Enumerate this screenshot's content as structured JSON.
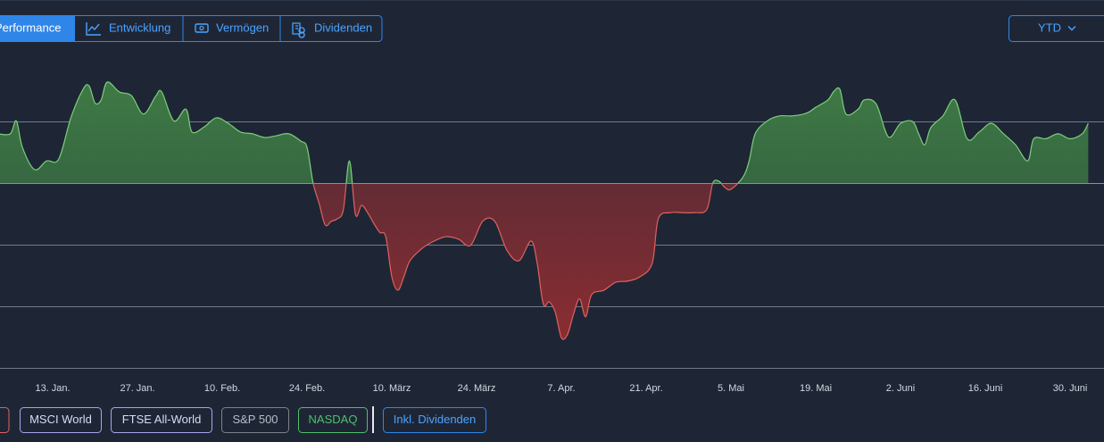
{
  "tabs": [
    "Performance",
    "Entwicklung",
    "Vermögen",
    "Dividenden"
  ],
  "period": "YTD",
  "chart_data": {
    "type": "area",
    "x": [
      4,
      6,
      7,
      8,
      10,
      12,
      14,
      16,
      18,
      19,
      20,
      21,
      22,
      24,
      26,
      28,
      30,
      31,
      33,
      35,
      36,
      38,
      40,
      42,
      44,
      46,
      48,
      50,
      52,
      54,
      55,
      56,
      57,
      58,
      59,
      60,
      61,
      62,
      63,
      64,
      65,
      66,
      67,
      68,
      69,
      70,
      71,
      72,
      74,
      76,
      78,
      80,
      82,
      84,
      86,
      88,
      90,
      92,
      93,
      94,
      95,
      96,
      97,
      98,
      99,
      100,
      101,
      102,
      104,
      106,
      108,
      110,
      112,
      113,
      115,
      117,
      119,
      121,
      122,
      123,
      124,
      125,
      127,
      128,
      129,
      131,
      133,
      135,
      137,
      138,
      139,
      141,
      142,
      143,
      144,
      146,
      147,
      149,
      151,
      153,
      155,
      156,
      157,
      158,
      160,
      162,
      164,
      166,
      168,
      170,
      172,
      174,
      175,
      177,
      179,
      181,
      183,
      184
    ],
    "values": [
      8.0,
      8.0,
      10.1,
      5.8,
      2.2,
      3.6,
      3.9,
      10.6,
      15.2,
      15.8,
      13.0,
      13.5,
      16.4,
      14.8,
      14.2,
      11.2,
      14.1,
      14.8,
      10.1,
      12.0,
      8.3,
      9.1,
      10.6,
      9.7,
      8.3,
      8.0,
      7.4,
      7.7,
      8.0,
      6.8,
      5.8,
      0.0,
      -3.3,
      -6.8,
      -6.2,
      -5.8,
      -4.3,
      3.6,
      -5.1,
      -3.6,
      -4.8,
      -6.5,
      -8.0,
      -8.7,
      -15.2,
      -17.4,
      -15.2,
      -12.6,
      -10.6,
      -9.4,
      -8.7,
      -9.1,
      -10.1,
      -6.2,
      -6.2,
      -10.9,
      -12.6,
      -9.4,
      -13.0,
      -19.6,
      -19.3,
      -21.0,
      -25.1,
      -24.6,
      -21.3,
      -18.8,
      -21.7,
      -18.1,
      -17.4,
      -16.1,
      -15.9,
      -15.2,
      -13.0,
      -5.8,
      -4.8,
      -4.8,
      -4.8,
      -4.3,
      0.0,
      0.3,
      -0.7,
      -1.0,
      1.0,
      3.6,
      8.0,
      10.1,
      10.9,
      10.9,
      11.2,
      11.6,
      12.3,
      13.5,
      14.9,
      15.2,
      11.2,
      12.0,
      13.5,
      12.8,
      7.5,
      9.7,
      10.0,
      8.0,
      6.2,
      9.0,
      10.9,
      13.5,
      7.2,
      8.3,
      9.7,
      8.0,
      6.2,
      3.6,
      7.2,
      7.2,
      8.0,
      7.2,
      8.0,
      9.7
    ],
    "xlim": [
      4.3,
      186.6
    ],
    "xticks": [
      {
        "value": 13,
        "label": "13. Jan."
      },
      {
        "value": 27,
        "label": "27. Jan."
      },
      {
        "value": 41,
        "label": "10. Feb."
      },
      {
        "value": 55,
        "label": "24. Feb."
      },
      {
        "value": 69,
        "label": "10. März"
      },
      {
        "value": 83,
        "label": "24. März"
      },
      {
        "value": 97,
        "label": "7. Apr."
      },
      {
        "value": 111,
        "label": "21. Apr."
      },
      {
        "value": 125,
        "label": "5. Mai"
      },
      {
        "value": 139,
        "label": "19. Mai"
      },
      {
        "value": 153,
        "label": "2. Juni"
      },
      {
        "value": 167,
        "label": "16. Juni"
      },
      {
        "value": 181,
        "label": "30. Juni"
      }
    ],
    "ylim": [
      -30,
      20.3
    ],
    "grid_lines": [
      10,
      0,
      -10,
      -20,
      -30
    ],
    "positive_color": "#7ccf7a",
    "negative_color": "#e0615f"
  },
  "benchmarks": [
    {
      "name": "MSCI World",
      "color": "#a9a4ee"
    },
    {
      "name": "FTSE All-World",
      "color": "#a9a4ee"
    },
    {
      "name": "S&P 500",
      "color": "#7b818c"
    },
    {
      "name": "NASDAQ",
      "color": "#4cc06a"
    }
  ],
  "dividends_toggle": "Inkl. Dividenden"
}
